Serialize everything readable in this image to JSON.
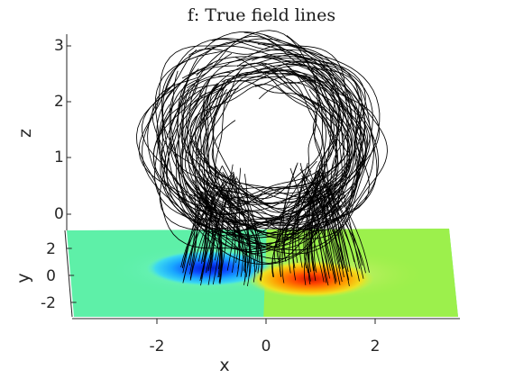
{
  "chart_data": {
    "type": "3d-field-lines",
    "title": "f:  True field lines",
    "xlabel": "x",
    "ylabel": "y",
    "zlabel": "z",
    "x_ticks": [
      "-2",
      "0",
      "2"
    ],
    "y_ticks": [
      "2",
      "0",
      "-2"
    ],
    "z_ticks": [
      "3",
      "2",
      "1",
      "0"
    ],
    "xlim": [
      -3.5,
      3.5
    ],
    "ylim": [
      -3.5,
      3.5
    ],
    "zlim": [
      0,
      3.2
    ],
    "base_colormap": "jet",
    "base_field": "Bz at z=0: negative pole near x=-1 (blue), positive pole near x=+1 (red)",
    "field_lines": {
      "color": "#000000",
      "shape": "twisted flux rope arch centred at x=0, y=0, rising to z≈2.3, connecting the negative pole at x≈-1 to the positive pole at x≈+1"
    }
  }
}
